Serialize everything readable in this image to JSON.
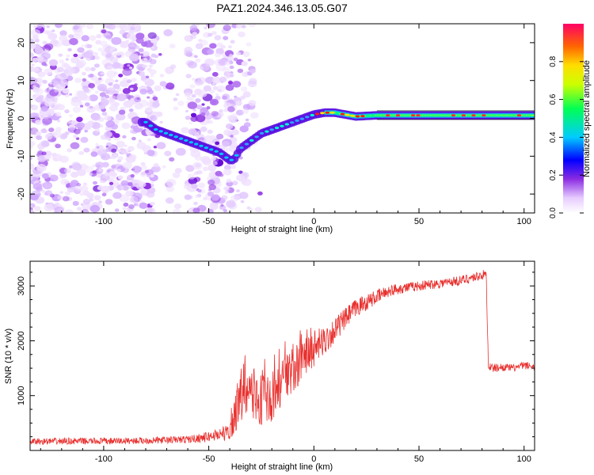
{
  "title": "PAZ1.2024.346.13.05.G07",
  "chart_data": [
    {
      "type": "heatmap",
      "xlabel": "Height of straight line (km)",
      "ylabel": "Frequency (Hz)",
      "xlim": [
        -135,
        105
      ],
      "ylim": [
        -25,
        25
      ],
      "x_ticks": [
        -100,
        -50,
        0,
        50,
        100
      ],
      "y_ticks": [
        -20,
        -10,
        0,
        10,
        20
      ],
      "ridge": {
        "x": [
          -80,
          -75,
          -70,
          -65,
          -60,
          -55,
          -50,
          -45,
          -40,
          -38,
          -35,
          -30,
          -25,
          -20,
          -15,
          -10,
          -5,
          0,
          5,
          10,
          15,
          20,
          30,
          40,
          50,
          60,
          70,
          80,
          90,
          100,
          105
        ],
        "y": [
          -1,
          -3,
          -4,
          -5,
          -6,
          -7,
          -8,
          -9,
          -11,
          -11,
          -8,
          -6,
          -4,
          -3,
          -2,
          -1,
          0,
          1,
          1.5,
          1.5,
          1,
          0.5,
          0.8,
          0.8,
          0.8,
          0.8,
          0.8,
          0.8,
          0.8,
          0.8,
          0.8
        ]
      },
      "colorbar": {
        "label": "Normalized spectral amplitude",
        "range": [
          0,
          1
        ],
        "ticks": [
          0.0,
          0.2,
          0.4,
          0.6,
          0.8
        ]
      },
      "grid": false
    },
    {
      "type": "line",
      "xlabel": "Height of straight line (km)",
      "ylabel": "SNR (10 * v/v)",
      "xlim": [
        -135,
        105
      ],
      "ylim": [
        0,
        3450
      ],
      "x_ticks": [
        -100,
        -50,
        0,
        50,
        100
      ],
      "y_ticks": [
        1000,
        2000,
        3000
      ],
      "series": [
        {
          "color": "#e8312f",
          "x": [
            -135,
            -120,
            -100,
            -80,
            -60,
            -50,
            -45,
            -40,
            -38,
            -36,
            -34,
            -30,
            -26,
            -22,
            -18,
            -15,
            -12,
            -8,
            -4,
            0,
            5,
            10,
            15,
            20,
            25,
            30,
            35,
            40,
            50,
            60,
            70,
            75,
            80,
            82,
            83,
            85,
            90,
            95,
            100,
            105
          ],
          "y": [
            160,
            170,
            170,
            180,
            200,
            250,
            300,
            330,
            500,
            800,
            1100,
            1000,
            950,
            900,
            1000,
            1200,
            1400,
            1550,
            1700,
            1850,
            2000,
            2200,
            2400,
            2600,
            2700,
            2800,
            2900,
            2950,
            3000,
            3050,
            3100,
            3150,
            3200,
            3200,
            1550,
            1500,
            1520,
            1500,
            1550,
            1530
          ],
          "noise": [
            60,
            60,
            60,
            60,
            70,
            90,
            120,
            150,
            350,
            450,
            500,
            500,
            500,
            480,
            480,
            450,
            420,
            400,
            380,
            330,
            280,
            230,
            200,
            170,
            150,
            130,
            110,
            100,
            90,
            90,
            90,
            90,
            90,
            90,
            80,
            80,
            70,
            70,
            70,
            70
          ]
        }
      ],
      "grid": false
    }
  ]
}
